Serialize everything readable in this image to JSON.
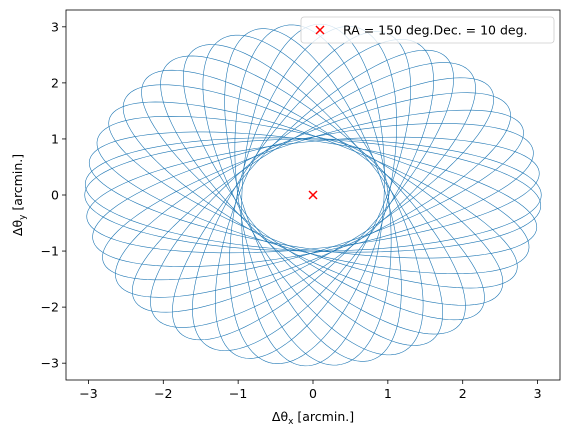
{
  "chart_data": {
    "type": "line",
    "xlabel": "Δθ",
    "xlabel_sub": "x",
    "xlabel_unit": " [arcmin.]",
    "ylabel": "Δθ",
    "ylabel_sub": "y",
    "ylabel_unit": " [arcmin.]",
    "xlim": [
      -3.3,
      3.3
    ],
    "ylim": [
      -3.3,
      3.3
    ],
    "xticks": [
      -3,
      -2,
      -1,
      0,
      1,
      2,
      3
    ],
    "yticks": [
      -3,
      -2,
      -1,
      0,
      1,
      2,
      3
    ],
    "grid": false,
    "legend_position": "top-right",
    "legend": [
      {
        "label": "RA = 150 deg.Dec. = 10 deg.",
        "marker": "x",
        "color": "#ff0000"
      }
    ],
    "center_marker": {
      "x": 0,
      "y": 0,
      "color": "#ff0000"
    },
    "series_color": "#1f77b4",
    "ellipses": [
      {
        "angle_deg": 0,
        "semi_major": 3.05,
        "semi_minor": 1.0
      },
      {
        "angle_deg": 8,
        "semi_major": 3.05,
        "semi_minor": 0.95
      },
      {
        "angle_deg": 16,
        "semi_major": 3.05,
        "semi_minor": 1.0
      },
      {
        "angle_deg": 24,
        "semi_major": 3.05,
        "semi_minor": 0.95
      },
      {
        "angle_deg": 32,
        "semi_major": 3.05,
        "semi_minor": 1.0
      },
      {
        "angle_deg": 40,
        "semi_major": 3.05,
        "semi_minor": 0.95
      },
      {
        "angle_deg": 48,
        "semi_major": 3.05,
        "semi_minor": 1.0
      },
      {
        "angle_deg": 56,
        "semi_major": 3.05,
        "semi_minor": 0.95
      },
      {
        "angle_deg": 64,
        "semi_major": 3.05,
        "semi_minor": 1.0
      },
      {
        "angle_deg": 72,
        "semi_major": 3.05,
        "semi_minor": 0.95
      },
      {
        "angle_deg": 80,
        "semi_major": 3.05,
        "semi_minor": 1.0
      },
      {
        "angle_deg": 88,
        "semi_major": 3.05,
        "semi_minor": 0.95
      },
      {
        "angle_deg": 96,
        "semi_major": 3.05,
        "semi_minor": 1.0
      },
      {
        "angle_deg": 104,
        "semi_major": 3.05,
        "semi_minor": 0.95
      },
      {
        "angle_deg": 112,
        "semi_major": 3.05,
        "semi_minor": 1.0
      },
      {
        "angle_deg": 120,
        "semi_major": 3.05,
        "semi_minor": 0.95
      },
      {
        "angle_deg": 128,
        "semi_major": 3.05,
        "semi_minor": 1.0
      },
      {
        "angle_deg": 136,
        "semi_major": 3.05,
        "semi_minor": 0.95
      },
      {
        "angle_deg": 144,
        "semi_major": 3.05,
        "semi_minor": 1.0
      },
      {
        "angle_deg": 152,
        "semi_major": 3.05,
        "semi_minor": 0.95
      },
      {
        "angle_deg": 160,
        "semi_major": 3.05,
        "semi_minor": 1.0
      },
      {
        "angle_deg": 168,
        "semi_major": 3.05,
        "semi_minor": 0.95
      },
      {
        "angle_deg": 176,
        "semi_major": 3.05,
        "semi_minor": 1.0
      }
    ]
  }
}
